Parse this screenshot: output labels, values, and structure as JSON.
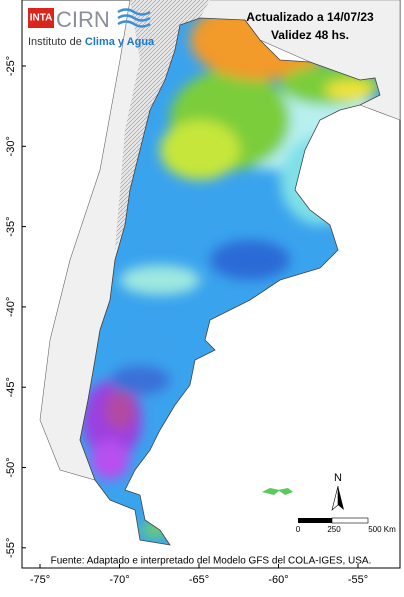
{
  "logo": {
    "badge": "INTA",
    "name": "CIRN",
    "institute": "Instituto de",
    "institute_highlight": "Clima y Agua"
  },
  "header": {
    "updated": "Actualizado a 14/07/23",
    "validity": "Validez 48 hs."
  },
  "axes": {
    "lat_labels": [
      "-25°",
      "-30°",
      "-35°",
      "-40°",
      "-45°",
      "-50°",
      "-55°"
    ],
    "lon_labels": [
      "-75°",
      "-70°",
      "-65°",
      "-60°",
      "-55°"
    ]
  },
  "compass": "N",
  "scale": {
    "labels": [
      "0",
      "250",
      "500 Km"
    ]
  },
  "footer": "Fuente: Adaptado e interpretado del Modelo GFS del COLA-IGES, USA."
}
